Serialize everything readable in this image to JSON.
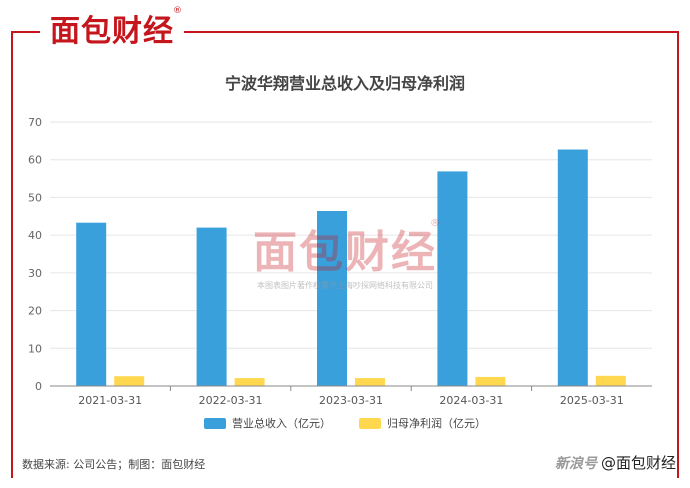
{
  "logo": {
    "text": "面包财经",
    "mark": "®"
  },
  "watermark": {
    "text": "面包财经",
    "mark": "®",
    "notice": "本图表图片著作权属于上海吵探网络科技有限公司"
  },
  "footer": {
    "source": "数据来源: 公司公告；制图：面包财经",
    "platform": "新浪号",
    "handle": "@面包财经"
  },
  "colors": {
    "revenue": "#3aa0dc",
    "profit": "#ffd84f",
    "brand": "#c4161c"
  },
  "chart_data": {
    "type": "bar",
    "title": "宁波华翔营业总收入及归母净利润",
    "categories": [
      "2021-03-31",
      "2022-03-31",
      "2023-03-31",
      "2024-03-31",
      "2025-03-31"
    ],
    "series": [
      {
        "name": "营业总收入（亿元）",
        "values": [
          43.3,
          42.0,
          46.4,
          56.9,
          62.7
        ]
      },
      {
        "name": "归母净利润（亿元）",
        "values": [
          2.6,
          2.1,
          2.1,
          2.4,
          2.7
        ]
      }
    ],
    "yticks": [
      "0",
      "10",
      "20",
      "30",
      "40",
      "50",
      "60",
      "70"
    ],
    "ylim": [
      0,
      70
    ],
    "grid": true,
    "legend_position": "bottom"
  }
}
